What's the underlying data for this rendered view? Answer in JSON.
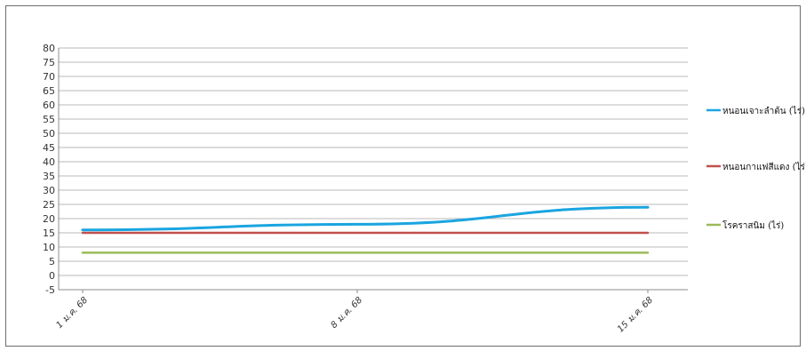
{
  "chart_data": {
    "type": "line",
    "title": "",
    "xlabel": "",
    "ylabel": "",
    "x": [
      "1 ม.ค. 68",
      "8 ม.ค. 68",
      "15 ม.ค. 68"
    ],
    "ylim": [
      -5,
      80
    ],
    "yticks": [
      80,
      75,
      70,
      65,
      60,
      55,
      50,
      45,
      40,
      35,
      30,
      25,
      20,
      15,
      10,
      5,
      0,
      -5
    ],
    "grid": true,
    "legend_position": "right",
    "series": [
      {
        "name": "หนอนเจาะลำต้น (ไร่)",
        "values": [
          16,
          18,
          24
        ],
        "color": "#1aa5e0"
      },
      {
        "name": "หนอนกาแฟสีแดง (ไร่)",
        "values": [
          15,
          15,
          15
        ],
        "color": "#c0504d"
      },
      {
        "name": "โรคราสนิม (ไร่)",
        "values": [
          8,
          8,
          8
        ],
        "color": "#9bbb59"
      }
    ]
  }
}
